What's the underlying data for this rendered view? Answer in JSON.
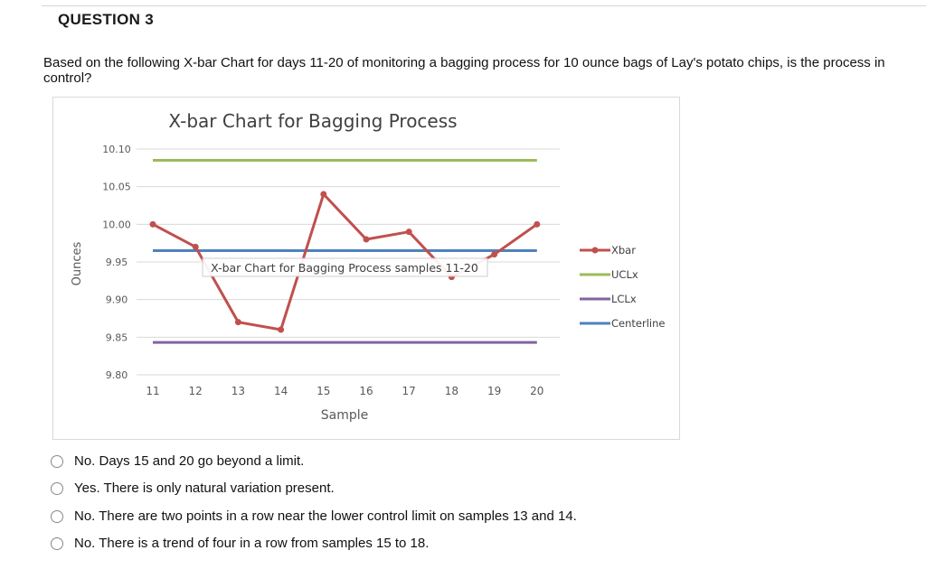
{
  "question": {
    "title": "QUESTION 3",
    "text": "Based on the following X-bar Chart for days 11-20 of monitoring a bagging process for 10 ounce bags of Lay's potato chips, is the process in control?"
  },
  "chart_data": {
    "type": "line",
    "title": "X-bar Chart for Bagging Process",
    "xlabel": "Sample",
    "ylabel": "Ounces",
    "x": [
      11,
      12,
      13,
      14,
      15,
      16,
      17,
      18,
      19,
      20
    ],
    "ylim": [
      9.8,
      10.1
    ],
    "yticks": [
      "10.10",
      "10.05",
      "10.00",
      "9.95",
      "9.90",
      "9.85",
      "9.80"
    ],
    "grid": true,
    "legend_position": "right",
    "series": [
      {
        "name": "Xbar",
        "color": "#c0504d",
        "values": [
          10.0,
          9.97,
          9.87,
          9.86,
          10.04,
          9.98,
          9.99,
          9.93,
          9.96,
          10.0
        ]
      },
      {
        "name": "UCLx",
        "color": "#9bbb59",
        "values": [
          10.085,
          10.085,
          10.085,
          10.085,
          10.085,
          10.085,
          10.085,
          10.085,
          10.085,
          10.085
        ]
      },
      {
        "name": "LCLx",
        "color": "#8064a2",
        "values": [
          9.843,
          9.843,
          9.843,
          9.843,
          9.843,
          9.843,
          9.843,
          9.843,
          9.843,
          9.843
        ]
      },
      {
        "name": "Centerline",
        "color": "#4f81bd",
        "values": [
          9.965,
          9.965,
          9.965,
          9.965,
          9.965,
          9.965,
          9.965,
          9.965,
          9.965,
          9.965
        ]
      }
    ],
    "tooltip": "X-bar Chart for Bagging Process samples 11-20"
  },
  "options": [
    "No. Days 15 and 20 go beyond a limit.",
    "Yes. There is only natural variation present.",
    "No. There are two points in a row near the lower control limit on samples 13 and 14.",
    "No. There is a trend of four in a row from samples 15 to 18."
  ]
}
